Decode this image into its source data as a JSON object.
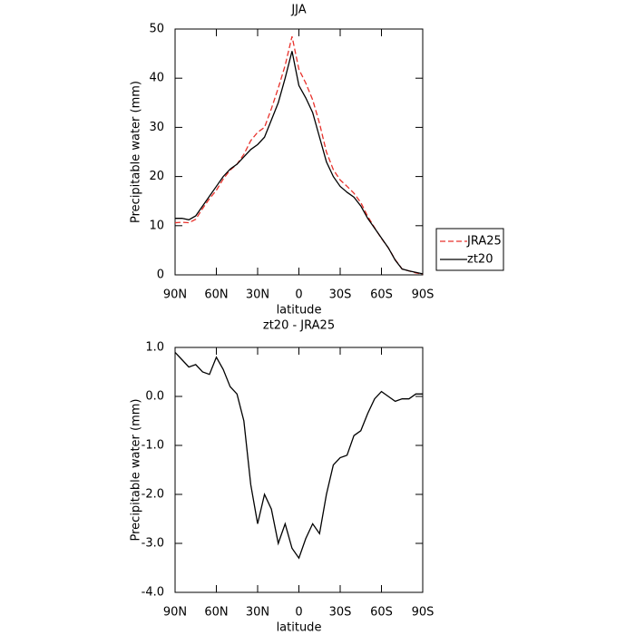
{
  "chart_data": [
    {
      "type": "line",
      "title": "JJA",
      "xlabel": "latitude",
      "ylabel": "Precipitable water (mm)",
      "x": [
        90,
        85,
        80,
        75,
        70,
        65,
        60,
        55,
        50,
        45,
        40,
        35,
        30,
        25,
        20,
        15,
        10,
        5,
        0,
        -5,
        -10,
        -15,
        -20,
        -25,
        -30,
        -35,
        -40,
        -45,
        -50,
        -55,
        -60,
        -65,
        -70,
        -75,
        -80,
        -85,
        -90
      ],
      "xlim": [
        90,
        -90
      ],
      "xticks": [
        {
          "value": 90,
          "label": "90N"
        },
        {
          "value": 60,
          "label": "60N"
        },
        {
          "value": 30,
          "label": "30N"
        },
        0,
        {
          "value": -30,
          "label": "30S"
        },
        {
          "value": -60,
          "label": "60S"
        },
        {
          "value": -90,
          "label": "90S"
        }
      ],
      "ylim": [
        0,
        50
      ],
      "yticks": [
        0,
        10,
        20,
        30,
        40,
        50
      ],
      "legend": "right",
      "series": [
        {
          "name": "JRA25",
          "color": "#e8302a",
          "line_style": "dashed",
          "values": [
            10.6,
            10.7,
            10.6,
            11.3,
            13.5,
            15.5,
            17.2,
            19.5,
            21.3,
            22.5,
            24.5,
            27.3,
            29,
            30,
            33.8,
            38,
            42.6,
            48.5,
            41.8,
            39,
            35.6,
            30.8,
            25,
            21.4,
            19.3,
            18,
            16.6,
            14.7,
            11.9,
            9.6,
            7.4,
            5.5,
            3.1,
            1.2,
            0.8,
            0.4,
            0.15
          ]
        },
        {
          "name": "zt20",
          "color": "#000000",
          "line_style": "solid",
          "values": [
            11.5,
            11.5,
            11.2,
            12,
            14,
            16,
            18,
            20,
            21.5,
            22.5,
            24,
            25.5,
            26.5,
            28,
            31.5,
            35,
            40,
            45.5,
            38.5,
            36,
            33,
            28,
            23,
            20,
            18,
            16.8,
            15.8,
            14,
            11.5,
            9.5,
            7.5,
            5.5,
            3,
            1.2,
            0.8,
            0.5,
            0.2
          ]
        }
      ]
    },
    {
      "type": "line",
      "title": "zt20 - JRA25",
      "xlabel": "latitude",
      "ylabel": "Precipitable water (mm)",
      "x": [
        90,
        85,
        80,
        75,
        70,
        65,
        60,
        55,
        50,
        45,
        40,
        35,
        30,
        25,
        20,
        15,
        10,
        5,
        0,
        -5,
        -10,
        -15,
        -20,
        -25,
        -30,
        -35,
        -40,
        -45,
        -50,
        -55,
        -60,
        -65,
        -70,
        -75,
        -80,
        -85,
        -90
      ],
      "xlim": [
        90,
        -90
      ],
      "xticks": [
        {
          "value": 90,
          "label": "90N"
        },
        {
          "value": 60,
          "label": "60N"
        },
        {
          "value": 30,
          "label": "30N"
        },
        0,
        {
          "value": -30,
          "label": "30S"
        },
        {
          "value": -60,
          "label": "60S"
        },
        {
          "value": -90,
          "label": "90S"
        }
      ],
      "ylim": [
        -4,
        1
      ],
      "yticks": [
        {
          "value": 1,
          "label": "1.0"
        },
        {
          "value": 0,
          "label": "0.0"
        },
        {
          "value": -1,
          "label": "-1.0"
        },
        {
          "value": -2,
          "label": "-2.0"
        },
        {
          "value": -3,
          "label": "-3.0"
        },
        {
          "value": -4,
          "label": "-4.0"
        }
      ],
      "series": [
        {
          "color": "#000000",
          "line_style": "solid",
          "values": [
            0.9,
            0.75,
            0.6,
            0.65,
            0.5,
            0.45,
            0.8,
            0.55,
            0.2,
            0.05,
            -0.5,
            -1.8,
            -2.6,
            -2.0,
            -2.3,
            -3.0,
            -2.6,
            -3.1,
            -3.3,
            -2.9,
            -2.6,
            -2.8,
            -2.0,
            -1.4,
            -1.25,
            -1.2,
            -0.8,
            -0.7,
            -0.35,
            -0.05,
            0.1,
            0.0,
            -0.1,
            -0.05,
            -0.05,
            0.05,
            0.05
          ]
        }
      ]
    }
  ]
}
